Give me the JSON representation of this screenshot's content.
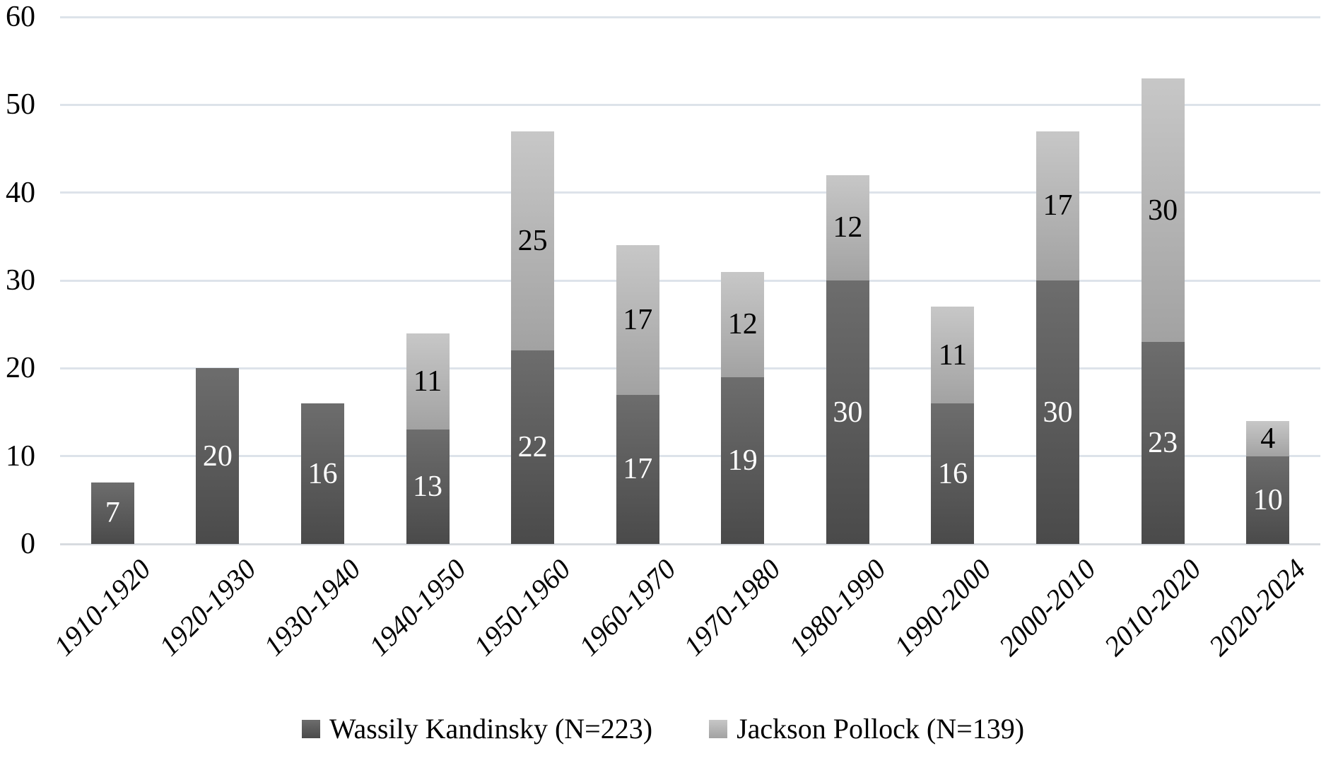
{
  "chart_data": {
    "type": "bar",
    "stacked": true,
    "title": "",
    "xlabel": "",
    "ylabel": "",
    "categories": [
      "1910-1920",
      "1920-1930",
      "1930-1940",
      "1940-1950",
      "1950-1960",
      "1960-1970",
      "1970-1980",
      "1980-1990",
      "1990-2000",
      "2000-2010",
      "2010-2020",
      "2020-2024"
    ],
    "series": [
      {
        "name": "Wassily Kandinsky (N=223)",
        "values": [
          7,
          20,
          16,
          13,
          22,
          17,
          19,
          30,
          16,
          30,
          23,
          10
        ],
        "fill": "#595959",
        "fill_gradient_top": "#6d6d6d",
        "fill_gradient_bottom": "#4a4a4a",
        "label_color": "#ffffff"
      },
      {
        "name": "Jackson Pollock (N=139)",
        "values": [
          0,
          0,
          0,
          11,
          25,
          17,
          12,
          12,
          11,
          17,
          30,
          4
        ],
        "fill": "#bfbfbf",
        "fill_gradient_top": "#c7c7c7",
        "fill_gradient_bottom": "#a2a2a2",
        "label_color": "#000000"
      }
    ],
    "totals": [
      7,
      20,
      16,
      24,
      47,
      34,
      31,
      42,
      27,
      47,
      53,
      14
    ],
    "ylim": [
      0,
      60
    ],
    "y_ticks": [
      0,
      10,
      20,
      30,
      40,
      50,
      60
    ],
    "grid": true,
    "gridline_color": "#dde3ea",
    "baseline_color": "#d7dbe0",
    "data_labels": true,
    "legend_position": "bottom",
    "background": "#ffffff"
  }
}
